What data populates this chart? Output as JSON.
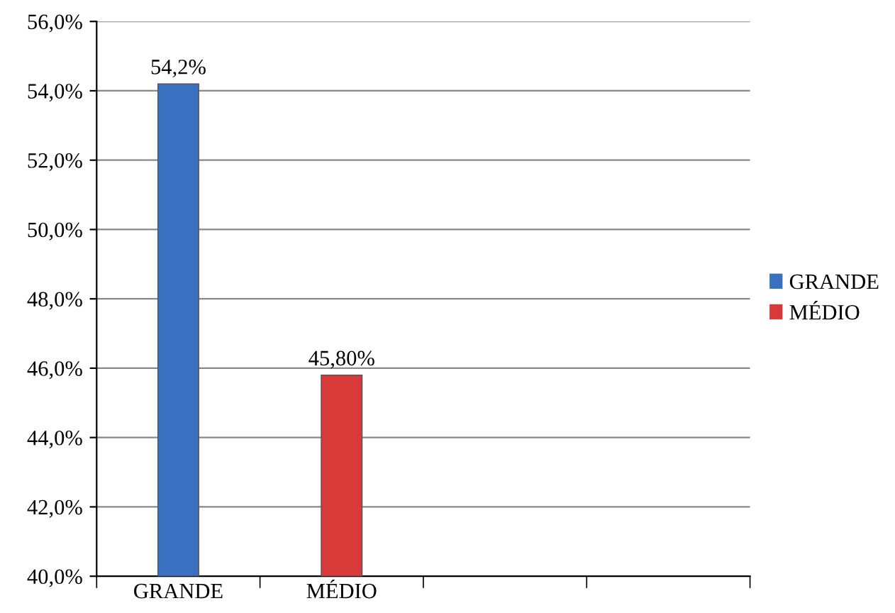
{
  "chart_data": {
    "type": "bar",
    "stacked": true,
    "categories": [
      "GRANDE",
      "MÉDIO",
      null,
      null
    ],
    "series": [
      {
        "name": "GRANDE",
        "color": "#3a70c0",
        "values": [
          54.2,
          null,
          null,
          null
        ],
        "value_labels": [
          "54,2%",
          null,
          null,
          null
        ]
      },
      {
        "name": "MÉDIO",
        "color": "#d83a3a",
        "values": [
          null,
          45.8,
          null,
          null
        ],
        "value_labels": [
          null,
          "45,80%",
          null,
          null
        ]
      }
    ],
    "ylim": [
      40,
      56
    ],
    "yticks": [
      {
        "value": 40,
        "label": "40,0%"
      },
      {
        "value": 42,
        "label": "42,0%"
      },
      {
        "value": 44,
        "label": "44,0%"
      },
      {
        "value": 46,
        "label": "46,0%"
      },
      {
        "value": 48,
        "label": "48,0%"
      },
      {
        "value": 50,
        "label": "50,0%"
      },
      {
        "value": 52,
        "label": "52,0%"
      },
      {
        "value": 54,
        "label": "54,0%"
      },
      {
        "value": 56,
        "label": "56,0%"
      }
    ],
    "grid": "y",
    "legend": "right"
  }
}
